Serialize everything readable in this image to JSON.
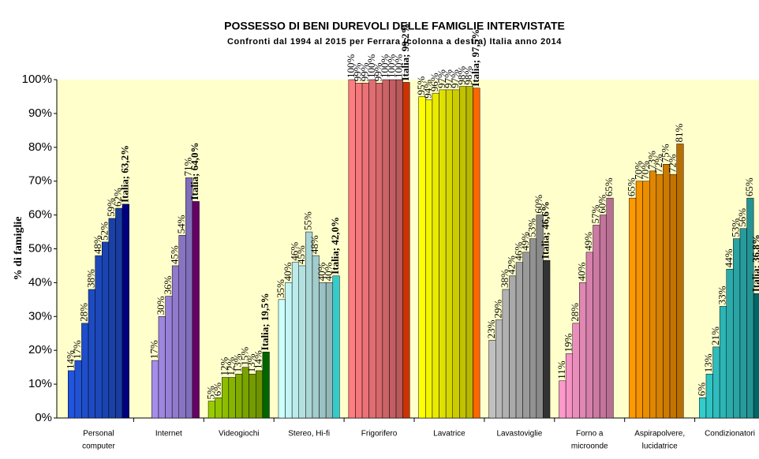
{
  "chart_data": {
    "type": "bar",
    "title": "POSSESSO DI BENI DUREVOLI DELLE FAMIGLIE INTERVISTATE",
    "subtitle": "Confronti dal 1994 al 2015 per Ferrara (colonna a destra) Italia anno 2014",
    "ylabel": "% di famiglie",
    "ylim": [
      0,
      100
    ],
    "yticks": [
      {
        "value": 0,
        "label": "0%"
      },
      {
        "value": 10,
        "label": "10%"
      },
      {
        "value": 20,
        "label": "20%"
      },
      {
        "value": 30,
        "label": "30%"
      },
      {
        "value": 40,
        "label": "40%"
      },
      {
        "value": 50,
        "label": "50%"
      },
      {
        "value": 60,
        "label": "60%"
      },
      {
        "value": 70,
        "label": "70%"
      },
      {
        "value": 80,
        "label": "80%"
      },
      {
        "value": 90,
        "label": "90%"
      },
      {
        "value": 100,
        "label": "100%"
      }
    ],
    "categories": [
      [
        "Personal",
        "computer"
      ],
      [
        "Internet"
      ],
      [
        "Videogiochi"
      ],
      [
        "Stereo, Hi-fi"
      ],
      [
        "Frigorifero"
      ],
      [
        "Lavatrice"
      ],
      [
        "Lavastoviglie"
      ],
      [
        "Forno a",
        "microonde"
      ],
      [
        "Aspirapolvere,",
        "lucidatrice"
      ],
      [
        "Condizionatori"
      ]
    ],
    "groups": [
      {
        "color": "#2255dd",
        "italia_color": "#000080",
        "values": [
          14,
          17,
          28,
          38,
          48,
          52,
          59,
          62
        ],
        "value_labels": [
          "14%",
          "17%",
          "28%",
          "38%",
          "48%",
          "52%",
          "59%",
          "62%"
        ],
        "italia": 63.2,
        "italia_label": "Italia; 63,2%"
      },
      {
        "color": "#b399ff",
        "italia_color": "#660066",
        "values": [
          null,
          null,
          17,
          30,
          36,
          45,
          54,
          71
        ],
        "value_labels": [
          null,
          null,
          "17%",
          "30%",
          "36%",
          "45%",
          "54%",
          "71%"
        ],
        "italia": 64.0,
        "italia_label": "Italia; 64,0%"
      },
      {
        "color": "#99cc00",
        "italia_color": "#006600",
        "values": [
          5,
          6,
          12,
          12,
          13,
          15,
          13,
          14
        ],
        "value_labels": [
          "5%",
          "6%",
          "12%",
          "12%",
          "13%",
          "15%",
          "13%",
          "14%"
        ],
        "italia": 19.5,
        "italia_label": "Italia; 19,5%"
      },
      {
        "color": "#ccffff",
        "italia_color": "#33cccc",
        "values": [
          35,
          40,
          46,
          45,
          55,
          48,
          40,
          40
        ],
        "value_labels": [
          "35%",
          "40%",
          "46%",
          "45%",
          "55%",
          "48%",
          "40%",
          "40%"
        ],
        "italia": 42.0,
        "italia_label": "Italia; 42,0%"
      },
      {
        "color": "#ff7c80",
        "italia_color": "#cc3300",
        "values": [
          100,
          99,
          99,
          100,
          99,
          100,
          100,
          100
        ],
        "value_labels": [
          "100%",
          "99%",
          "99%",
          "100%",
          "99%",
          "100%",
          "100%",
          "100%"
        ],
        "italia": 99.2,
        "italia_label": "Italia; 99,2%"
      },
      {
        "color": "#ffff00",
        "italia_color": "#ff6600",
        "values": [
          95,
          94,
          96,
          97,
          97,
          97,
          98,
          98
        ],
        "value_labels": [
          "95%",
          "94%",
          "96%",
          "97%",
          "97%",
          "97%",
          "98%",
          "98%"
        ],
        "italia": 97.5,
        "italia_label": "Italia; 97,5%"
      },
      {
        "color": "#c0c0c0",
        "italia_color": "#333333",
        "values": [
          23,
          29,
          38,
          42,
          46,
          49,
          53,
          60
        ],
        "value_labels": [
          "23%",
          "29%",
          "38%",
          "42%",
          "46%",
          "49%",
          "53%",
          "60%"
        ],
        "italia": 46.6,
        "italia_label": "Italia; 46,6%"
      },
      {
        "color": "#ff99cc",
        "italia_color": "#cc3399",
        "values": [
          11,
          19,
          28,
          40,
          49,
          57,
          60,
          65
        ],
        "value_labels": [
          "11%",
          "19%",
          "28%",
          "40%",
          "49%",
          "57%",
          "60%",
          "65%"
        ],
        "italia": null,
        "italia_label": null
      },
      {
        "color": "#ff9900",
        "italia_color": "#cc6600",
        "values": [
          65,
          70,
          70,
          73,
          72,
          75,
          72,
          81
        ],
        "value_labels": [
          "65%",
          "70%",
          "70%",
          "73%",
          "72%",
          "75%",
          "72%",
          "81%"
        ],
        "italia": null,
        "italia_label": null
      },
      {
        "color": "#33cccc",
        "italia_color": "#006666",
        "values": [
          6,
          13,
          21,
          33,
          44,
          53,
          56,
          65
        ],
        "value_labels": [
          "6%",
          "13%",
          "21%",
          "33%",
          "44%",
          "53%",
          "56%",
          "65%"
        ],
        "italia": 36.8,
        "italia_label": "Italia; 36,8%"
      }
    ]
  }
}
